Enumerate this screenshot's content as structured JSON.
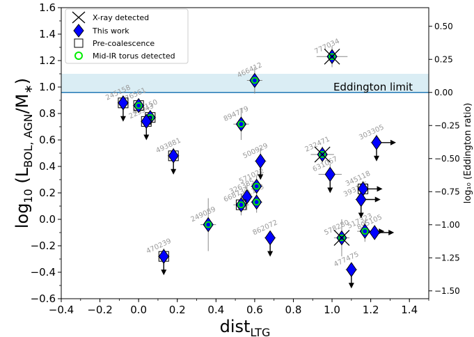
{
  "chart_data": {
    "type": "scatter",
    "xlabel": "dist",
    "xlabel_sub": "LTG",
    "ylabel": "log",
    "ylabel_base_sub": "10",
    "ylabel_expr": " (L",
    "ylabel_sub": "BOL, AGN",
    "ylabel_tail": "/M",
    "ylabel_star": "∗",
    "ylabel_close": ")",
    "y2label": "log₁₀ (Eddington ratio)",
    "xlim": [
      -0.4,
      1.5
    ],
    "ylim": [
      -0.6,
      1.6
    ],
    "y2lim": [
      -1.5592,
      0.6408
    ],
    "x_ticks": [
      -0.4,
      -0.2,
      0.0,
      0.2,
      0.4,
      0.6,
      0.8,
      1.0,
      1.2,
      1.4
    ],
    "x_tick_labels": [
      "−0.4",
      "−0.2",
      "0.0",
      "0.2",
      "0.4",
      "0.6",
      "0.8",
      "1.0",
      "1.2",
      "1.4"
    ],
    "y_ticks": [
      -0.6,
      -0.4,
      -0.2,
      0.0,
      0.2,
      0.4,
      0.6,
      0.8,
      1.0,
      1.2,
      1.4,
      1.6
    ],
    "y_tick_labels": [
      "−0.6",
      "−0.4",
      "−0.2",
      "0.0",
      "0.2",
      "0.4",
      "0.6",
      "0.8",
      "1.0",
      "1.2",
      "1.4",
      "1.6"
    ],
    "y2_ticks": [
      -1.5,
      -1.25,
      -1.0,
      -0.75,
      -0.5,
      -0.25,
      0.0,
      0.25,
      0.5
    ],
    "y2_tick_labels": [
      "−1.50",
      "−1.25",
      "−1.00",
      "−0.75",
      "−0.50",
      "−0.25",
      "0.00",
      "0.25",
      "0.50"
    ],
    "eddington_line_y": 0.9592,
    "eddington_band": [
      0.96,
      1.1
    ],
    "eddington_label": "Eddington limit",
    "legend_position": "top-left",
    "legend": [
      {
        "marker": "x",
        "label": "X-ray detected"
      },
      {
        "marker": "diamond",
        "label": "This work"
      },
      {
        "marker": "square",
        "label": "Pre-coalescence"
      },
      {
        "marker": "circle",
        "label": "Mid-IR torus detected"
      }
    ],
    "colors": {
      "diamond": "#0000ff",
      "torus": "#00ee00",
      "eddington_line": "#1f77b4",
      "eddington_band": "#add8e6",
      "label": "#9a9a9a",
      "errorbar": "#888888"
    },
    "points": [
      {
        "id": "245158",
        "x": -0.08,
        "y": 0.88,
        "xerr": 0.03,
        "yerr": 0.05,
        "upper": true,
        "right": false,
        "xray": false,
        "square": true,
        "torus": false,
        "label": "245158"
      },
      {
        "id": "476561",
        "x": 0.0,
        "y": 0.86,
        "xerr": 0.03,
        "yerr": 0.05,
        "upper": false,
        "right": false,
        "xray": false,
        "square": true,
        "torus": true,
        "label": "476561"
      },
      {
        "id": "455150",
        "x": 0.06,
        "y": 0.77,
        "xerr": 0.03,
        "yerr": 0.05,
        "upper": false,
        "right": false,
        "xray": false,
        "square": true,
        "torus": true,
        "label": "455150"
      },
      {
        "id": "223543",
        "x": 0.04,
        "y": 0.74,
        "xerr": 0.03,
        "yerr": 0.05,
        "upper": true,
        "right": false,
        "xray": false,
        "square": true,
        "torus": false,
        "label": "223543"
      },
      {
        "id": "493881",
        "x": 0.18,
        "y": 0.48,
        "xerr": 0.03,
        "yerr": 0.06,
        "upper": true,
        "right": false,
        "xray": false,
        "square": true,
        "torus": false,
        "label": "493881"
      },
      {
        "id": "470239",
        "x": 0.13,
        "y": -0.28,
        "xerr": 0.03,
        "yerr": 0.06,
        "upper": true,
        "right": false,
        "xray": false,
        "square": true,
        "torus": false,
        "label": "470239"
      },
      {
        "id": "249089",
        "x": 0.36,
        "y": -0.04,
        "xerr": 0.04,
        "yerr": 0.2,
        "upper": false,
        "right": false,
        "xray": false,
        "square": false,
        "torus": true,
        "label": "249089"
      },
      {
        "id": "466412",
        "x": 0.6,
        "y": 1.05,
        "xerr": 0.04,
        "yerr": 0.1,
        "upper": false,
        "right": false,
        "xray": false,
        "square": false,
        "torus": true,
        "label": "466412"
      },
      {
        "id": "894779",
        "x": 0.53,
        "y": 0.72,
        "xerr": 0.04,
        "yerr": 0.12,
        "upper": false,
        "right": false,
        "xray": false,
        "square": false,
        "torus": true,
        "label": "894779"
      },
      {
        "id": "500929",
        "x": 0.63,
        "y": 0.44,
        "xerr": 0.03,
        "yerr": 0.1,
        "upper": true,
        "right": false,
        "xray": false,
        "square": false,
        "torus": false,
        "label": "500929"
      },
      {
        "id": "326385",
        "x": 0.56,
        "y": 0.17,
        "xerr": 0.03,
        "yerr": 0.1,
        "upper": false,
        "right": false,
        "xray": false,
        "square": false,
        "torus": false,
        "label": "326385"
      },
      {
        "id": "668734",
        "x": 0.53,
        "y": 0.11,
        "xerr": 0.04,
        "yerr": 0.08,
        "upper": false,
        "right": false,
        "xray": false,
        "square": true,
        "torus": true,
        "label": "668734"
      },
      {
        "id": "571022",
        "x": 0.61,
        "y": 0.25,
        "xerr": 0.03,
        "yerr": 0.08,
        "upper": false,
        "right": false,
        "xray": false,
        "square": false,
        "torus": true,
        "label": "571022"
      },
      {
        "id": "221173",
        "x": 0.61,
        "y": 0.13,
        "xerr": 0.03,
        "yerr": 0.08,
        "upper": false,
        "right": false,
        "xray": false,
        "square": false,
        "torus": true,
        "label": "221173"
      },
      {
        "id": "862072",
        "x": 0.68,
        "y": -0.14,
        "xerr": 0.03,
        "yerr": 0.05,
        "upper": true,
        "right": false,
        "xray": false,
        "square": false,
        "torus": false,
        "label": "862072"
      },
      {
        "id": "777034",
        "x": 1.0,
        "y": 1.23,
        "xerr": 0.08,
        "yerr": 0.08,
        "upper": false,
        "right": false,
        "xray": true,
        "square": false,
        "torus": true,
        "label": "777034"
      },
      {
        "id": "232471",
        "x": 0.95,
        "y": 0.49,
        "xerr": 0.06,
        "yerr": 0.06,
        "upper": false,
        "right": false,
        "xray": true,
        "square": false,
        "torus": true,
        "label": "232471"
      },
      {
        "id": "631067",
        "x": 0.99,
        "y": 0.34,
        "xerr": 0.06,
        "yerr": 0.08,
        "upper": true,
        "right": false,
        "xray": false,
        "square": false,
        "torus": false,
        "label": "631067"
      },
      {
        "id": "303305",
        "x": 1.23,
        "y": 0.58,
        "xerr": 0.03,
        "yerr": 0.06,
        "upper": true,
        "right": true,
        "xray": false,
        "square": false,
        "torus": false,
        "label": "303305"
      },
      {
        "id": "345118",
        "x": 1.16,
        "y": 0.23,
        "xerr": 0.03,
        "yerr": 0.06,
        "upper": false,
        "right": true,
        "xray": false,
        "square": true,
        "torus": false,
        "label": "345118"
      },
      {
        "id": "393185",
        "x": 1.15,
        "y": 0.15,
        "xerr": 0.03,
        "yerr": 0.06,
        "upper": true,
        "right": true,
        "xray": false,
        "square": false,
        "torus": false,
        "label": "393185"
      },
      {
        "id": "578280",
        "x": 1.05,
        "y": -0.14,
        "xerr": 0.04,
        "yerr": 0.14,
        "upper": false,
        "right": false,
        "xray": true,
        "square": false,
        "torus": true,
        "label": "578280"
      },
      {
        "id": "517323",
        "x": 1.17,
        "y": -0.09,
        "xerr": 0.04,
        "yerr": 0.08,
        "upper": false,
        "right": true,
        "xray": false,
        "square": false,
        "torus": true,
        "label": "517323"
      },
      {
        "id": "895105",
        "x": 1.22,
        "y": -0.1,
        "xerr": 0.03,
        "yerr": 0.05,
        "upper": false,
        "right": true,
        "xray": false,
        "square": false,
        "torus": false,
        "label": "895105"
      },
      {
        "id": "477475",
        "x": 1.1,
        "y": -0.38,
        "xerr": 0.03,
        "yerr": 0.05,
        "upper": true,
        "right": false,
        "xray": false,
        "square": false,
        "torus": false,
        "label": "477475"
      }
    ]
  }
}
